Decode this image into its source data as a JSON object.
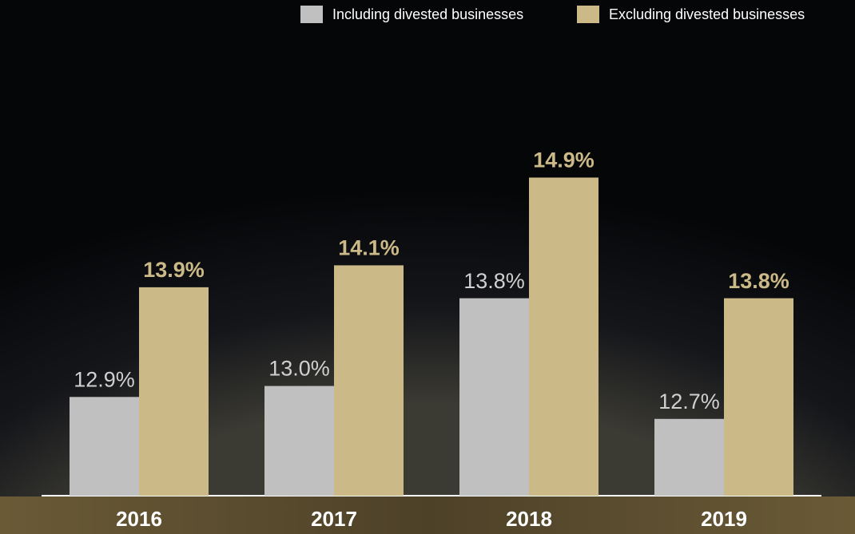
{
  "chart_data": {
    "type": "bar",
    "categories": [
      "2016",
      "2017",
      "2018",
      "2019"
    ],
    "series": [
      {
        "name": "Including divested businesses",
        "color": "#c0c0c0",
        "values": [
          12.9,
          13.0,
          13.8,
          12.7
        ],
        "value_labels": [
          "12.9%",
          "13.0%",
          "13.8%",
          "12.7%"
        ]
      },
      {
        "name": "Excluding divested businesses",
        "color": "#cbb987",
        "values": [
          13.9,
          14.1,
          14.9,
          13.8
        ],
        "value_labels": [
          "13.9%",
          "14.1%",
          "14.9%",
          "13.8%"
        ]
      }
    ],
    "ylim": [
      12,
      15.5
    ],
    "legend": "top-right"
  }
}
